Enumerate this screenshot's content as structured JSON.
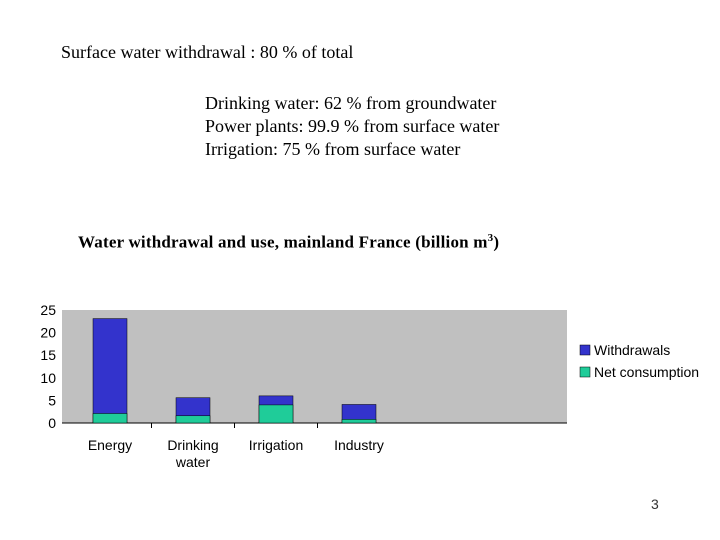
{
  "slide": {
    "headline": "Surface water withdrawal : 80 % of total",
    "facts": [
      "Drinking water: 62 % from groundwater",
      "Power plants: 99.9 % from surface water",
      "Irrigation: 75 % from surface water"
    ],
    "page_number": "3"
  },
  "chart_title": {
    "text": "Water withdrawal and use, mainland France (billion m",
    "superscript": "3",
    "suffix": ")"
  },
  "chart_data": {
    "type": "bar",
    "categories": [
      "Energy",
      "Drinking water",
      "Irrigation",
      "Industry"
    ],
    "category_lines": [
      [
        "Energy"
      ],
      [
        "Drinking",
        "water"
      ],
      [
        "Irrigation"
      ],
      [
        "Industry"
      ]
    ],
    "series": [
      {
        "name": "Withdrawals",
        "values": [
          23.1,
          5.6,
          6.0,
          4.1
        ],
        "color": "#3333cc"
      },
      {
        "name": "Net consumption",
        "values": [
          2.1,
          1.6,
          4.0,
          0.8
        ],
        "color": "#1fcc99"
      }
    ],
    "overlapped": true,
    "ylim": [
      0,
      25
    ],
    "yticks": [
      0,
      5,
      10,
      15,
      20,
      25
    ],
    "grid": false,
    "legend": "right",
    "plot_background": "#c0c0c0"
  }
}
